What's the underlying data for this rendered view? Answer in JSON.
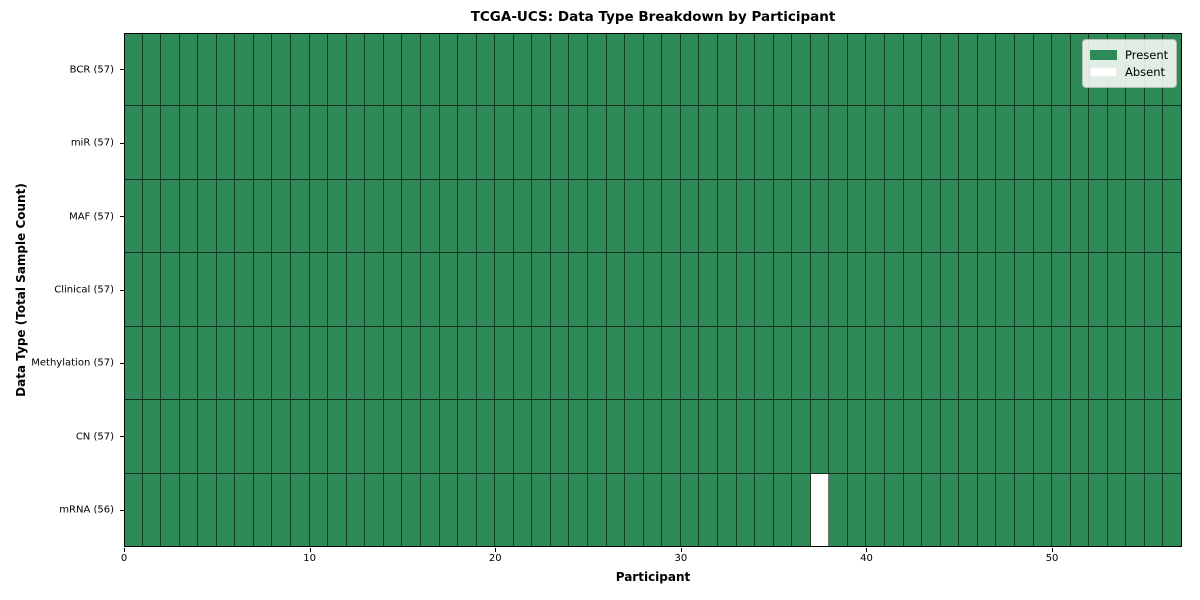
{
  "chart_data": {
    "type": "heatmap",
    "title": "TCGA-UCS: Data Type Breakdown by Participant",
    "xlabel": "Participant",
    "ylabel": "Data Type (Total Sample Count)",
    "x_range": [
      0,
      57
    ],
    "x_ticks": [
      0,
      10,
      20,
      30,
      40,
      50
    ],
    "n_participants": 57,
    "rows": [
      {
        "label": "BCR (57)",
        "data_type": "BCR",
        "total_sample_count": 57,
        "absent_participants": []
      },
      {
        "label": "miR (57)",
        "data_type": "miR",
        "total_sample_count": 57,
        "absent_participants": []
      },
      {
        "label": "MAF (57)",
        "data_type": "MAF",
        "total_sample_count": 57,
        "absent_participants": []
      },
      {
        "label": "Clinical (57)",
        "data_type": "Clinical",
        "total_sample_count": 57,
        "absent_participants": []
      },
      {
        "label": "Methylation (57)",
        "data_type": "Methylation",
        "total_sample_count": 57,
        "absent_participants": []
      },
      {
        "label": "CN (57)",
        "data_type": "CN",
        "total_sample_count": 57,
        "absent_participants": []
      },
      {
        "label": "mRNA (56)",
        "data_type": "mRNA",
        "total_sample_count": 56,
        "absent_participants": [
          37
        ]
      }
    ],
    "legend": {
      "position": "upper right",
      "entries": [
        {
          "label": "Present",
          "color": "#2e8b57"
        },
        {
          "label": "Absent",
          "color": "#ffffff"
        }
      ]
    },
    "colors": {
      "present": "#2e8b57",
      "absent": "#ffffff",
      "gridline": "#1c4530",
      "border": "#000000"
    },
    "grid": true
  }
}
